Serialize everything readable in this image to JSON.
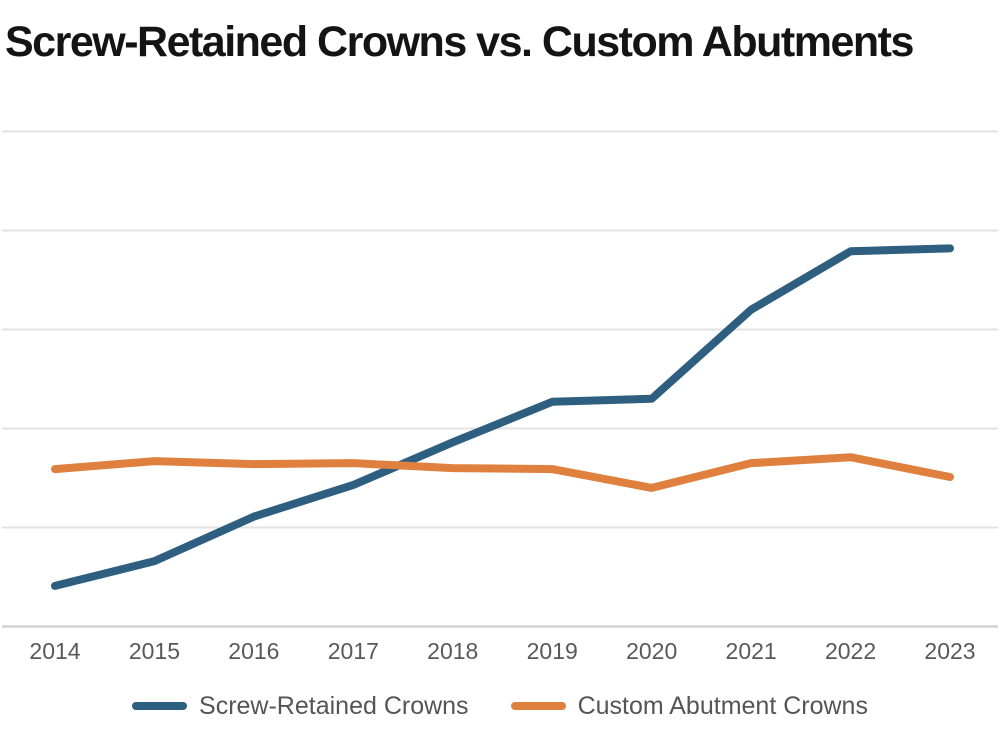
{
  "title": "Screw-Retained Crowns vs. Custom Abutments",
  "colors": {
    "series_screw_retained": "#2E5F80",
    "series_custom_abutment": "#E0803E",
    "gridline": "#E3E3E3",
    "axis_line": "#D2D2D2",
    "tick_label": "#595959",
    "legend_label": "#555555",
    "title_text": "#141414"
  },
  "chart_data": {
    "type": "line",
    "title": "Screw-Retained Crowns vs. Custom Abutments",
    "xlabel": "",
    "ylabel": "",
    "categories": [
      "2014",
      "2015",
      "2016",
      "2017",
      "2018",
      "2019",
      "2020",
      "2021",
      "2022",
      "2023"
    ],
    "series": [
      {
        "name": "Screw-Retained Crowns",
        "color": "#2E5F80",
        "values": [
          4.1,
          6.6,
          11.1,
          14.3,
          18.6,
          22.7,
          23.0,
          32.0,
          37.9,
          38.2
        ]
      },
      {
        "name": "Custom Abutment Crowns",
        "color": "#E0803E",
        "values": [
          15.9,
          16.7,
          16.4,
          16.5,
          16.0,
          15.9,
          14.0,
          16.5,
          17.1,
          15.1
        ]
      }
    ],
    "ylim": [
      0,
      54
    ],
    "y_gridlines": [
      10,
      20,
      30,
      40,
      50
    ],
    "y_axis_labels_visible": false,
    "grid": "horizontal",
    "legend_position": "bottom"
  }
}
